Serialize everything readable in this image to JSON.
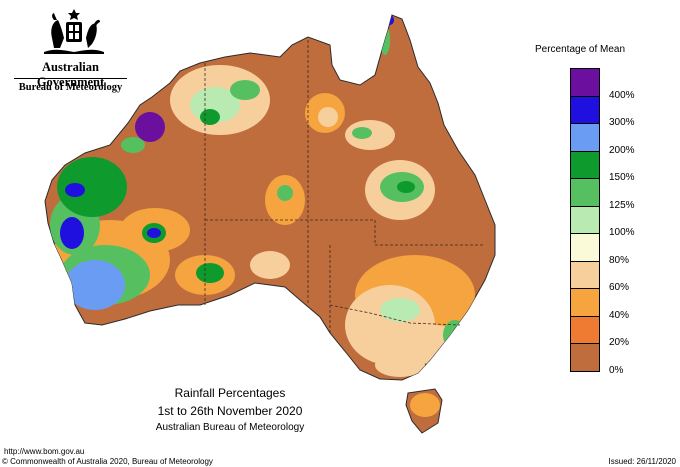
{
  "header": {
    "government": "Australian Government",
    "bureau": "Bureau of Meteorology"
  },
  "legend": {
    "title": "Percentage of Mean",
    "bands": [
      {
        "color": "#6a0f9e",
        "label": "400%"
      },
      {
        "color": "#1f10e0",
        "label": "300%"
      },
      {
        "color": "#6a9cf4",
        "label": "200%"
      },
      {
        "color": "#0e9a2c",
        "label": "150%"
      },
      {
        "color": "#56c061",
        "label": "125%"
      },
      {
        "color": "#b9eab2",
        "label": "100%"
      },
      {
        "color": "#fbfad8",
        "label": "80%"
      },
      {
        "color": "#f7cf9c",
        "label": "60%"
      },
      {
        "color": "#f5a43f",
        "label": "40%"
      },
      {
        "color": "#ef7a32",
        "label": "20%"
      },
      {
        "color": "#c06d3e",
        "label": "0%"
      }
    ]
  },
  "caption": {
    "title": "Rainfall Percentages",
    "period": "1st to 26th November 2020",
    "source": "Australian Bureau of Meteorology"
  },
  "footer": {
    "url": "http://www.bom.gov.au",
    "copyright": "© Commonwealth of Australia 2020, Bureau of Meteorology",
    "issued": "Issued: 26/11/2020"
  },
  "map": {
    "base_color": "#c06d3e",
    "border_color": "#2b2b2b"
  }
}
